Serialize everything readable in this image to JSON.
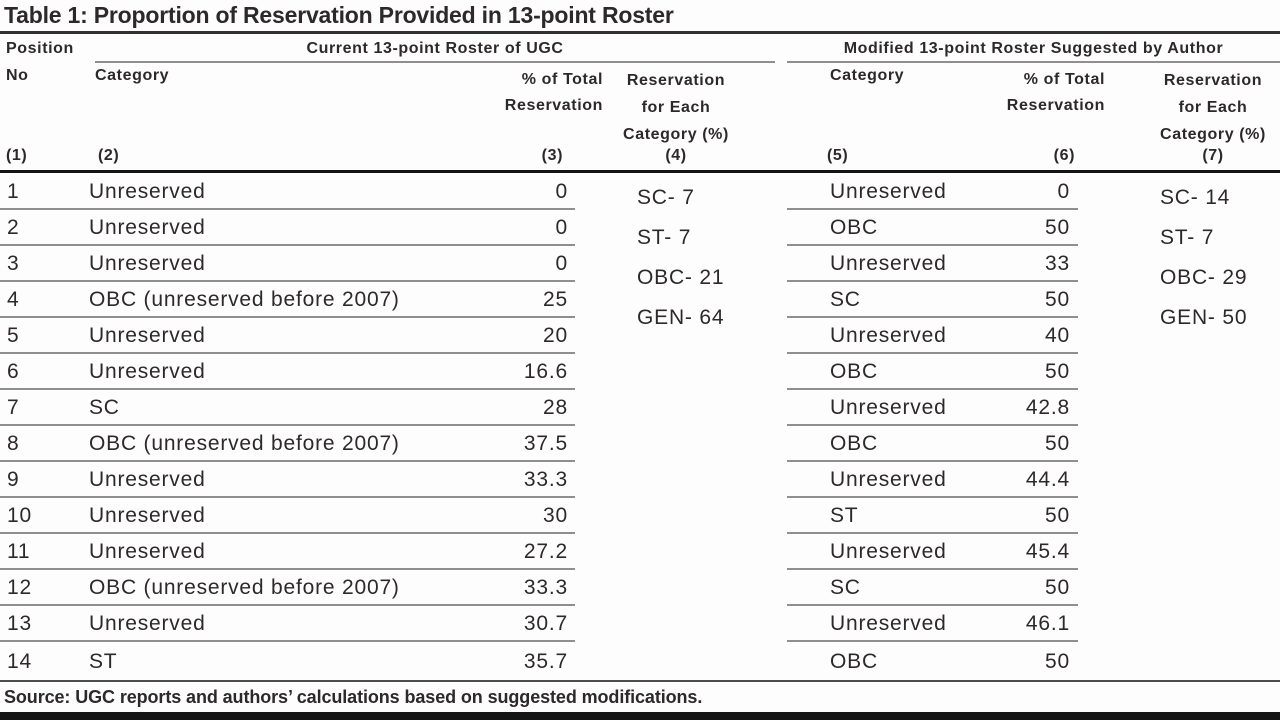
{
  "title": "Table 1: Proportion of Reservation Provided in 13-point Roster",
  "header": {
    "position_line1": "Position",
    "position_line2": "No",
    "group_current": "Current 13-point Roster of UGC",
    "group_modified": "Modified 13-point Roster Suggested by Author",
    "category": "Category",
    "pct_line1": "% of Total",
    "pct_line2": "Reservation",
    "each_line1": "Reservation",
    "each_line2": "for Each",
    "each_line3": "Category (%)",
    "col_numbers": [
      "(1)",
      "(2)",
      "(3)",
      "(4)",
      "(5)",
      "(6)",
      "(7)"
    ]
  },
  "table": {
    "rows": [
      {
        "no": "1",
        "cur_cat": "Unreserved",
        "cur_pct": "0",
        "mod_cat": "Unreserved",
        "mod_pct": "0"
      },
      {
        "no": "2",
        "cur_cat": "Unreserved",
        "cur_pct": "0",
        "mod_cat": "OBC",
        "mod_pct": "50"
      },
      {
        "no": "3",
        "cur_cat": "Unreserved",
        "cur_pct": "0",
        "mod_cat": "Unreserved",
        "mod_pct": "33"
      },
      {
        "no": "4",
        "cur_cat": "OBC (unreserved before 2007)",
        "cur_pct": "25",
        "mod_cat": "SC",
        "mod_pct": "50"
      },
      {
        "no": "5",
        "cur_cat": "Unreserved",
        "cur_pct": "20",
        "mod_cat": "Unreserved",
        "mod_pct": "40"
      },
      {
        "no": "6",
        "cur_cat": "Unreserved",
        "cur_pct": "16.6",
        "mod_cat": "OBC",
        "mod_pct": "50"
      },
      {
        "no": "7",
        "cur_cat": "SC",
        "cur_pct": "28",
        "mod_cat": "Unreserved",
        "mod_pct": "42.8"
      },
      {
        "no": "8",
        "cur_cat": "OBC (unreserved before 2007)",
        "cur_pct": "37.5",
        "mod_cat": "OBC",
        "mod_pct": "50"
      },
      {
        "no": "9",
        "cur_cat": "Unreserved",
        "cur_pct": "33.3",
        "mod_cat": "Unreserved",
        "mod_pct": "44.4"
      },
      {
        "no": "10",
        "cur_cat": "Unreserved",
        "cur_pct": "30",
        "mod_cat": "ST",
        "mod_pct": "50"
      },
      {
        "no": "11",
        "cur_cat": "Unreserved",
        "cur_pct": "27.2",
        "mod_cat": "Unreserved",
        "mod_pct": "45.4"
      },
      {
        "no": "12",
        "cur_cat": "OBC (unreserved before 2007)",
        "cur_pct": "33.3",
        "mod_cat": "SC",
        "mod_pct": "50"
      },
      {
        "no": "13",
        "cur_cat": "Unreserved",
        "cur_pct": "30.7",
        "mod_cat": "Unreserved",
        "mod_pct": "46.1"
      },
      {
        "no": "14",
        "cur_cat": "ST",
        "cur_pct": "35.7",
        "mod_cat": "OBC",
        "mod_pct": "50"
      }
    ],
    "cur_each": [
      "SC- 7",
      "ST- 7",
      "OBC- 21",
      "GEN- 64"
    ],
    "mod_each": [
      "SC- 14",
      "ST- 7",
      "OBC- 29",
      "GEN- 50"
    ]
  },
  "source": "Source: UGC reports and authors’ calculations based on suggested modifications.",
  "colors": {
    "text": "#2d292a",
    "rule_light": "#8f8f8f",
    "rule_heavy": "#141414",
    "rule_title": "#323232",
    "bottom_bar": "#151515"
  }
}
